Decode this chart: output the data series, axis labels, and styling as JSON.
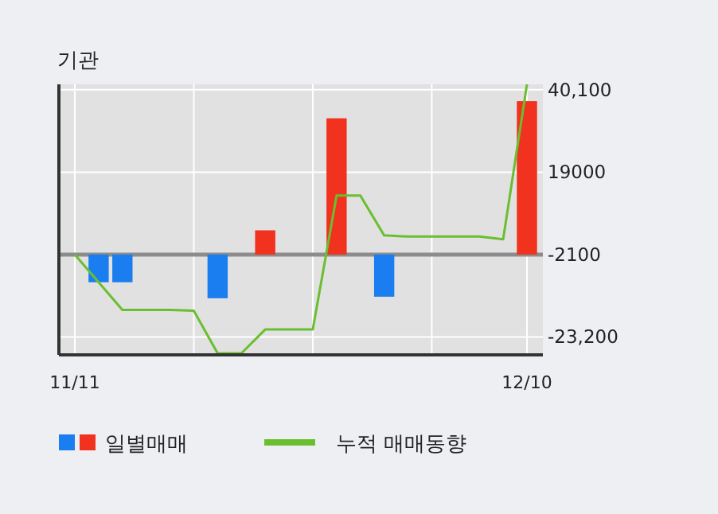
{
  "chart_data": {
    "type": "bar",
    "title": "기관",
    "categories": [
      "11/11",
      null,
      null,
      null,
      null,
      null,
      null,
      null,
      null,
      null,
      null,
      null,
      null,
      null,
      null,
      null,
      null,
      null,
      null,
      "12/10"
    ],
    "series": [
      {
        "name": "일별매매",
        "colors": [
          null,
          "#1a7ef0",
          "#1a7ef0",
          null,
          null,
          null,
          "#1a7ef0",
          null,
          "#f0321e",
          null,
          null,
          "#f0321e",
          null,
          "#1a7ef0",
          null,
          null,
          null,
          null,
          null,
          "#f0321e"
        ],
        "base": [
          null,
          -2100,
          -2100,
          null,
          null,
          null,
          -2100,
          null,
          -2100,
          null,
          null,
          -2100,
          null,
          -2100,
          null,
          null,
          null,
          null,
          null,
          -2100
        ],
        "values": [
          null,
          -7100,
          -7100,
          null,
          null,
          null,
          -11200,
          null,
          6200,
          null,
          null,
          34900,
          null,
          -10800,
          null,
          null,
          null,
          null,
          null,
          39300
        ]
      },
      {
        "name": "누적 매매동향",
        "type": "line",
        "color": "#6abf30",
        "values": [
          -2100,
          -9200,
          -16300,
          -16300,
          -16300,
          -16500,
          -27400,
          -27400,
          -21300,
          -21300,
          -21300,
          13000,
          13000,
          2800,
          2500,
          2500,
          2500,
          2500,
          1800,
          41500
        ]
      }
    ],
    "ylim": [
      -27800,
      41500
    ],
    "yticks": [
      {
        "value": 40100,
        "label": "40,100"
      },
      19000,
      -2100,
      {
        "value": -23200,
        "label": "-23,200"
      }
    ],
    "ref_lines": [
      {
        "axis": "y",
        "value": -2100,
        "color": "#8c8c8c"
      }
    ],
    "grid": true,
    "legend": "bottom"
  }
}
